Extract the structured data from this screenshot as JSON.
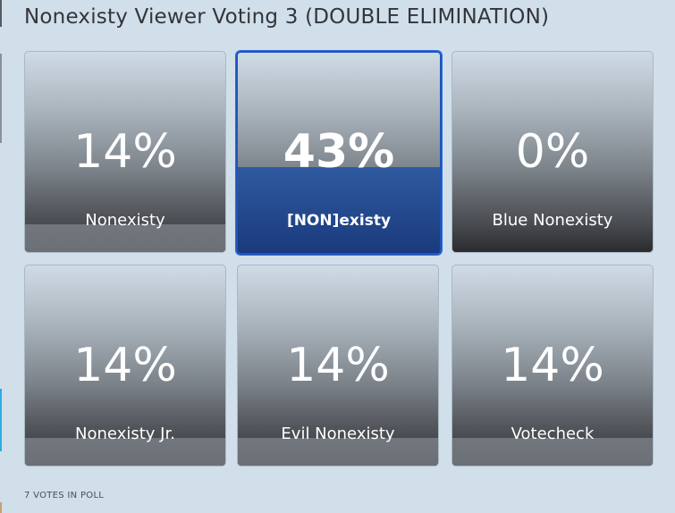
{
  "poll": {
    "title": "Nonexisty Viewer Voting 3 (DOUBLE ELIMINATION)",
    "footer": "7 VOTES IN POLL",
    "accent_color": "#1f55bd",
    "options": [
      {
        "label": "Nonexisty",
        "percent_text": "14%",
        "percent": 14,
        "selected": false
      },
      {
        "label": "[NON]existy",
        "percent_text": "43%",
        "percent": 43,
        "selected": true
      },
      {
        "label": "Blue Nonexisty",
        "percent_text": "0%",
        "percent": 0,
        "selected": false
      },
      {
        "label": "Nonexisty Jr.",
        "percent_text": "14%",
        "percent": 14,
        "selected": false
      },
      {
        "label": "Evil Nonexisty",
        "percent_text": "14%",
        "percent": 14,
        "selected": false
      },
      {
        "label": "Votecheck",
        "percent_text": "14%",
        "percent": 14,
        "selected": false
      }
    ]
  }
}
